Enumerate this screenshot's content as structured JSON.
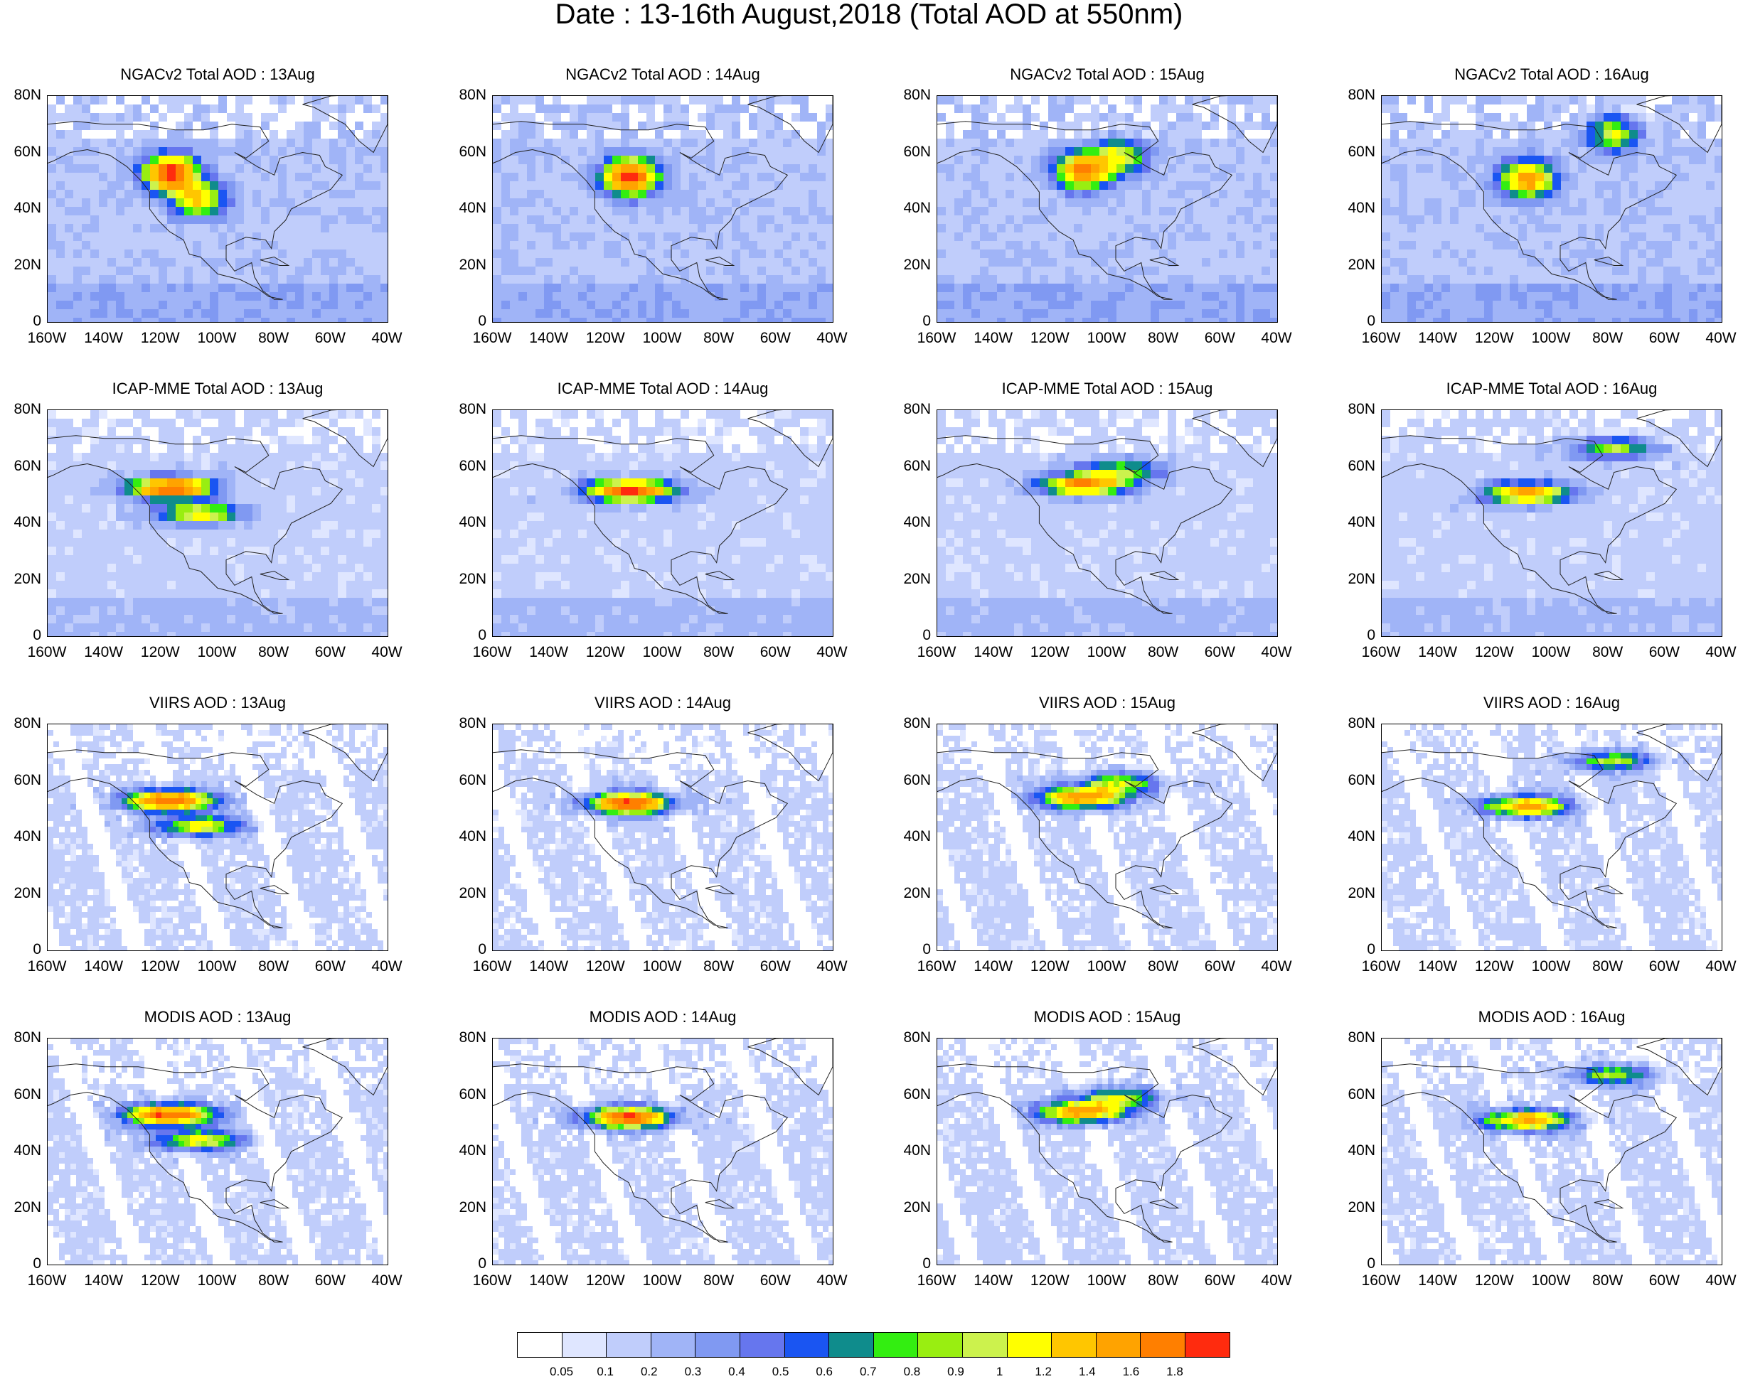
{
  "title": "Date : 13-16th August,2018 (Total AOD at 550nm)",
  "rows": [
    {
      "product": "NGACv2 Total AOD",
      "pattern": "model"
    },
    {
      "product": "ICAP-MME Total AOD",
      "pattern": "ensemble"
    },
    {
      "product": "VIIRS AOD",
      "pattern": "swath"
    },
    {
      "product": "MODIS AOD",
      "pattern": "swath"
    }
  ],
  "panel_titles": [
    [
      "NGACv2 Total AOD : 13Aug",
      "NGACv2 Total AOD : 14Aug",
      "NGACv2 Total AOD : 15Aug",
      "NGACv2 Total AOD : 16Aug"
    ],
    [
      "ICAP-MME Total AOD : 13Aug",
      "ICAP-MME Total AOD : 14Aug",
      "ICAP-MME Total AOD : 15Aug",
      "ICAP-MME Total AOD : 16Aug"
    ],
    [
      "VIIRS AOD : 13Aug",
      "VIIRS AOD : 14Aug",
      "VIIRS AOD : 15Aug",
      "VIIRS AOD : 16Aug"
    ],
    [
      "MODIS AOD : 13Aug",
      "MODIS AOD : 14Aug",
      "MODIS AOD : 15Aug",
      "MODIS AOD : 16Aug"
    ]
  ],
  "lat_labels": [
    "80N",
    "60N",
    "40N",
    "20N",
    "0"
  ],
  "lon_labels": [
    "160W",
    "140W",
    "120W",
    "100W",
    "80W",
    "60W",
    "40W"
  ],
  "lat_range": [
    0,
    80
  ],
  "lon_range": [
    -160,
    -40
  ],
  "colorbar": {
    "labels": [
      "0.05",
      "0.1",
      "0.2",
      "0.3",
      "0.4",
      "0.5",
      "0.6",
      "0.7",
      "0.8",
      "0.9",
      "1",
      "1.2",
      "1.4",
      "1.6",
      "1.8"
    ],
    "colors": [
      "#ffffff",
      "#dfe6ff",
      "#c0cdfb",
      "#a0b4f7",
      "#8099f2",
      "#6676ee",
      "#1a55f2",
      "#0f8c8c",
      "#33ee11",
      "#99ee11",
      "#ccf24d",
      "#ffff00",
      "#ffc600",
      "#ffa300",
      "#ff7f00",
      "#ff2b0e"
    ]
  },
  "plumes": [
    [
      {
        "lon": -118,
        "lat": 54,
        "strength": 1.8
      },
      {
        "lon": -108,
        "lat": 45,
        "strength": 1.0
      }
    ],
    [
      {
        "lon": -113,
        "lat": 53,
        "strength": 1.8
      }
    ],
    [
      {
        "lon": -110,
        "lat": 55,
        "strength": 1.5
      },
      {
        "lon": -97,
        "lat": 60,
        "strength": 0.8
      }
    ],
    [
      {
        "lon": -110,
        "lat": 52,
        "strength": 1.4
      },
      {
        "lon": -80,
        "lat": 68,
        "strength": 0.8
      }
    ]
  ]
}
